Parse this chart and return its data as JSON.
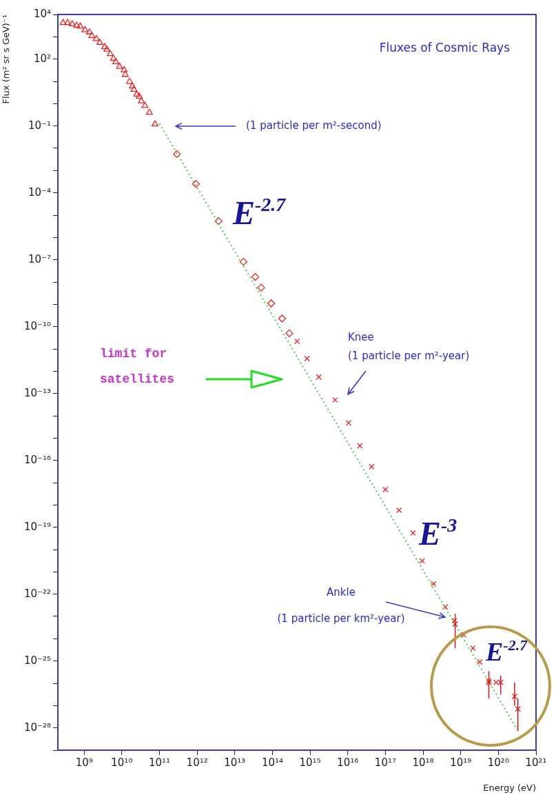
{
  "chart_data": {
    "type": "scatter",
    "title": "Fluxes of Cosmic Rays",
    "xlabel": "Energy (eV)",
    "ylabel": "Flux (m² sr s GeV)⁻¹",
    "log": "xy",
    "xlim": [
      200000000.0,
      1e+21
    ],
    "ylim": [
      1e-29,
      10000.0
    ],
    "xticks": [
      {
        "value": 1000000000.0,
        "label": "10⁹"
      },
      {
        "value": 10000000000.0,
        "label": "10¹⁰"
      },
      {
        "value": 100000000000.0,
        "label": "10¹¹"
      },
      {
        "value": 1000000000000.0,
        "label": "10¹²"
      },
      {
        "value": 10000000000000.0,
        "label": "10¹³"
      },
      {
        "value": 100000000000000.0,
        "label": "10¹⁴"
      },
      {
        "value": 1000000000000000.0,
        "label": "10¹⁵"
      },
      {
        "value": 1e+16,
        "label": "10¹⁶"
      },
      {
        "value": 1e+17,
        "label": "10¹⁷"
      },
      {
        "value": 1e+18,
        "label": "10¹⁸"
      },
      {
        "value": 1e+19,
        "label": "10¹⁹"
      },
      {
        "value": 1e+20,
        "label": "10²⁰"
      },
      {
        "value": 1e+21,
        "label": "10²¹"
      }
    ],
    "yticks": [
      {
        "value": 10000.0,
        "label": "10⁴"
      },
      {
        "value": 1000.0,
        "label": null
      },
      {
        "value": 100.0,
        "label": "10²"
      },
      {
        "value": 10.0,
        "label": null
      },
      {
        "value": 1,
        "label": null
      },
      {
        "value": 0.1,
        "label": "10⁻¹"
      },
      {
        "value": 0.01,
        "label": null
      },
      {
        "value": 0.001,
        "label": null
      },
      {
        "value": 0.0001,
        "label": "10⁻⁴"
      },
      {
        "value": 1e-05,
        "label": null
      },
      {
        "value": 1e-06,
        "label": null
      },
      {
        "value": 1e-07,
        "label": "10⁻⁷"
      },
      {
        "value": 1e-08,
        "label": null
      },
      {
        "value": 1e-09,
        "label": null
      },
      {
        "value": 1e-10,
        "label": "10⁻¹⁰"
      },
      {
        "value": 1e-11,
        "label": null
      },
      {
        "value": 1e-12,
        "label": null
      },
      {
        "value": 1e-13,
        "label": "10⁻¹³"
      },
      {
        "value": 1e-14,
        "label": null
      },
      {
        "value": 1e-15,
        "label": null
      },
      {
        "value": 1e-16,
        "label": "10⁻¹⁶"
      },
      {
        "value": 1e-17,
        "label": null
      },
      {
        "value": 1e-18,
        "label": null
      },
      {
        "value": 1e-19,
        "label": "10⁻¹⁹"
      },
      {
        "value": 1e-20,
        "label": null
      },
      {
        "value": 1e-21,
        "label": null
      },
      {
        "value": 1e-22,
        "label": "10⁻²²"
      },
      {
        "value": 1e-23,
        "label": null
      },
      {
        "value": 1e-24,
        "label": null
      },
      {
        "value": 1e-25,
        "label": "10⁻²⁵"
      },
      {
        "value": 1e-26,
        "label": null
      },
      {
        "value": 1e-27,
        "label": null
      },
      {
        "value": 1e-28,
        "label": "10⁻²⁸"
      },
      {
        "value": 1e-29,
        "label": null
      }
    ],
    "series": [
      {
        "type": "line",
        "color": "#44cc44",
        "marker": "none",
        "line_style": "dotted",
        "x": [
          100000000000.0,
          3.2e+20
        ],
        "values": [
          0.126,
          8e-29
        ]
      },
      {
        "type": "scatter",
        "color": "#ee2222",
        "marker": "triangle",
        "x": [
          274000000.0,
          360000000.0,
          480000000.0,
          630000000.0,
          790000000.0,
          1050000000.0,
          1380000000.0,
          1600000000.0,
          2100000000.0,
          2600000000.0,
          3500000000.0,
          4000000000.0,
          4900000000.0,
          6000000000.0,
          6900000000.0,
          8700000000.0,
          11500000000.0,
          12300000000.0,
          16000000000.0,
          19000000000.0,
          21000000000.0,
          25000000000.0,
          29000000000.0,
          33000000000.0,
          41000000000.0,
          54000000000.0,
          76000000000.0
        ],
        "values": [
          4200,
          4200,
          3700,
          3200,
          2900,
          2000,
          1600,
          1100,
          800,
          550,
          350,
          270,
          170,
          105,
          74,
          46,
          32,
          20,
          9.8,
          6,
          4.3,
          2.6,
          2.1,
          1.3,
          0.81,
          0.4,
          0.12
        ]
      },
      {
        "type": "scatter",
        "color": "#ee2222",
        "marker": "diamond",
        "x": [
          290000000000.0,
          930000000000.0,
          3700000000000.0,
          17000000000000.0,
          35000000000000.0,
          50000000000000.0,
          93000000000000.0,
          180000000000000.0,
          280000000000000.0
        ],
        "values": [
          0.0055,
          0.00025,
          5.4e-06,
          8.1e-08,
          1.7e-08,
          5.6e-09,
          1.1e-09,
          2.3e-10,
          5e-11
        ]
      },
      {
        "type": "scatter",
        "color": "#ee2222",
        "marker": "cross",
        "x": [
          450000000000000.0,
          830000000000000.0,
          1700000000000000.0,
          4600000000000000.0,
          1.05e+16,
          2.1e+16,
          4.3e+16,
          1e+17,
          2.3e+17,
          5.4e+17,
          9.5e+17,
          1.9e+18,
          3.9e+18,
          6.8e+18,
          1.2e+19,
          2.1e+19,
          3.2e+19,
          5.6e+19,
          8.7e+19
        ],
        "values": [
          2.2e-11,
          3.7e-12,
          5.5e-13,
          5.1e-14,
          4.8e-15,
          4.5e-16,
          5.2e-17,
          4.9e-18,
          5.8e-19,
          5.5e-20,
          3.1e-21,
          2.9e-22,
          2.7e-23,
          6.5e-24,
          1.5e-24,
          3.8e-25,
          9.1e-26,
          1.3e-26,
          1.1e-26
        ]
      },
      {
        "type": "scatter",
        "color": "#dd1111",
        "marker": "cross",
        "x": [
          7.1e+18,
          5.6e+19,
          1.15e+20,
          2.7e+20,
          3.3e+20
        ],
        "values": [
          4.6e-24,
          1.1e-26,
          1.1e-26,
          2.6e-27,
          7.1e-28
        ],
        "errors": [
          [
            3.8e-25,
            1.3e-23
          ],
          [
            2.1e-27,
            3.5e-26
          ],
          [
            3.2e-27,
            2.2e-26
          ],
          [
            1e-27,
            1.1e-26
          ],
          [
            7.2e-29,
            2.1e-27
          ]
        ]
      }
    ],
    "annotations": [
      "(1 particle per m²-second)",
      "E$^{-2.7}$",
      "Knee\n(1 particle per m²-year)",
      "limit for\nsatellites",
      "E$^{-3}$",
      "Ankle\n(1 particle per km²-year)",
      "E$^{-2.7}$"
    ]
  }
}
